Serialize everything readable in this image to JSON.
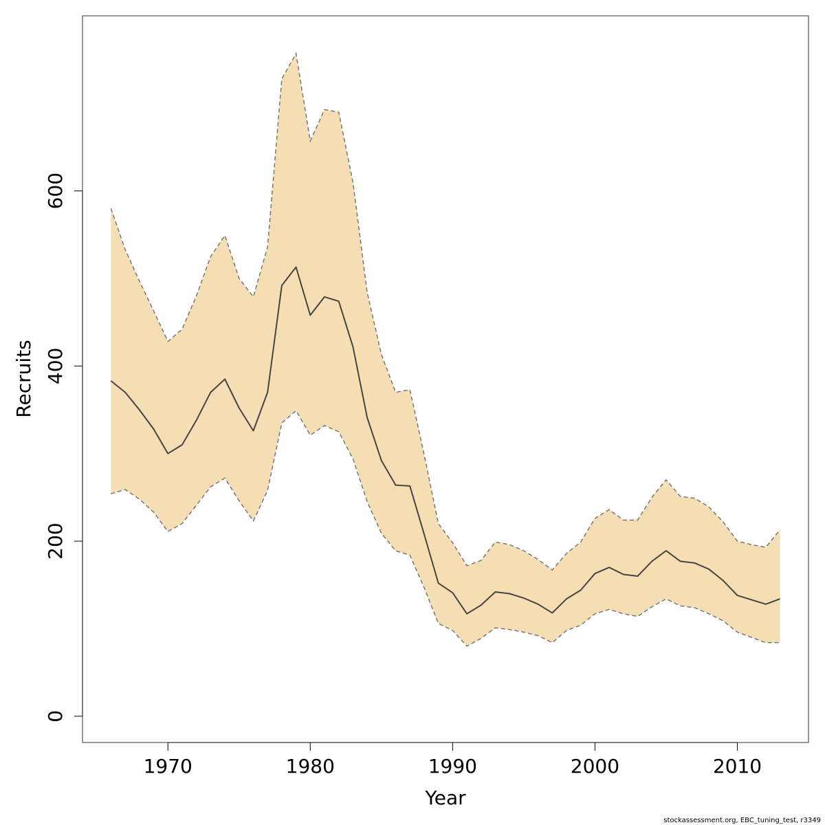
{
  "chart_data": {
    "type": "area",
    "xlabel": "Year",
    "ylabel": "Recruits",
    "xlim": [
      1964,
      2015
    ],
    "ylim": [
      -30,
      800
    ],
    "xticks": [
      1970,
      1980,
      1990,
      2000,
      2010
    ],
    "yticks": [
      0,
      200,
      400,
      600
    ],
    "grid": false,
    "years": [
      1966,
      1967,
      1968,
      1969,
      1970,
      1971,
      1972,
      1973,
      1974,
      1975,
      1976,
      1977,
      1978,
      1979,
      1980,
      1981,
      1982,
      1983,
      1984,
      1985,
      1986,
      1987,
      1988,
      1989,
      1990,
      1991,
      1992,
      1993,
      1994,
      1995,
      1996,
      1997,
      1998,
      1999,
      2000,
      2001,
      2002,
      2003,
      2004,
      2005,
      2006,
      2007,
      2008,
      2009,
      2010,
      2011,
      2012,
      2013
    ],
    "estimate": [
      383,
      370,
      350,
      328,
      300,
      310,
      338,
      370,
      385,
      352,
      326,
      370,
      492,
      513,
      458,
      479,
      474,
      422,
      341,
      292,
      264,
      263,
      208,
      152,
      141,
      117,
      127,
      142,
      140,
      135,
      128,
      118,
      134,
      144,
      163,
      170,
      162,
      160,
      177,
      189,
      177,
      175,
      168,
      155,
      138,
      133,
      128,
      134
    ],
    "upper": [
      580,
      533,
      497,
      463,
      428,
      442,
      480,
      525,
      549,
      500,
      479,
      536,
      728,
      757,
      657,
      693,
      690,
      610,
      484,
      413,
      370,
      373,
      299,
      220,
      198,
      172,
      178,
      199,
      196,
      189,
      179,
      167,
      186,
      199,
      226,
      236,
      224,
      224,
      250,
      270,
      251,
      249,
      239,
      222,
      200,
      196,
      193,
      213
    ],
    "lower": [
      254,
      259,
      248,
      233,
      211,
      220,
      241,
      262,
      272,
      246,
      223,
      258,
      335,
      349,
      321,
      332,
      325,
      294,
      245,
      209,
      189,
      184,
      147,
      106,
      98,
      80,
      89,
      101,
      99,
      96,
      92,
      84,
      98,
      104,
      117,
      122,
      117,
      114,
      125,
      134,
      126,
      124,
      117,
      109,
      96,
      90,
      84,
      84
    ],
    "colors": {
      "band": "#f5deb3",
      "band_edge": "#777777",
      "line": "#444444"
    },
    "credit": "stockassessment.org, EBC_tuning_test, r3349"
  }
}
